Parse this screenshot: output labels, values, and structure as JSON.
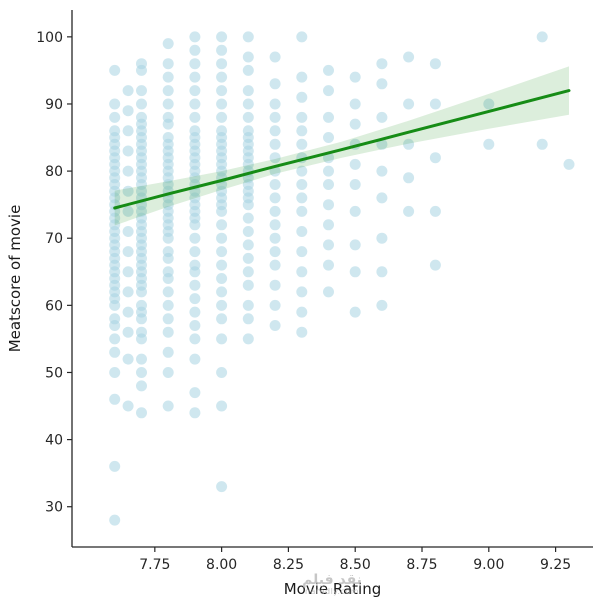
{
  "watermark": {
    "line1": "نقد فيلم",
    "line2": "naredly.com"
  },
  "chart_data": {
    "type": "scatter",
    "title": "",
    "xlabel": "Movie Rating",
    "ylabel": "Meatscore of movie",
    "xlim": [
      7.44,
      9.39
    ],
    "ylim": [
      24,
      104
    ],
    "xticks": [
      "7.75",
      "8.00",
      "8.25",
      "8.50",
      "8.75",
      "9.00",
      "9.25"
    ],
    "xtick_values": [
      7.75,
      8.0,
      8.25,
      8.5,
      8.75,
      9.0,
      9.25
    ],
    "yticks": [
      30,
      40,
      50,
      60,
      70,
      80,
      90,
      100
    ],
    "grid": false,
    "legend": "none",
    "point_color": "#a8d3e2",
    "point_opacity": 0.55,
    "point_radius": 5.5,
    "line_color": "#168c16",
    "line_width": 3,
    "band_color": "#168c16",
    "band_opacity": 0.15,
    "points_by_rating": [
      {
        "x": 7.6,
        "ys": [
          28,
          36,
          46,
          50,
          53,
          55,
          57,
          58,
          60,
          61,
          62,
          63,
          64,
          65,
          66,
          67,
          68,
          69,
          70,
          71,
          72,
          73,
          74,
          75,
          76,
          77,
          78,
          79,
          80,
          81,
          82,
          83,
          84,
          85,
          86,
          88,
          90,
          95
        ]
      },
      {
        "x": 7.65,
        "ys": [
          45,
          52,
          56,
          59,
          62,
          65,
          68,
          71,
          74,
          77,
          80,
          83,
          86,
          89,
          92
        ]
      },
      {
        "x": 7.7,
        "ys": [
          44,
          48,
          50,
          52,
          55,
          56,
          58,
          59,
          60,
          62,
          63,
          64,
          65,
          66,
          67,
          68,
          69,
          70,
          71,
          72,
          73,
          74,
          75,
          76,
          77,
          78,
          79,
          80,
          81,
          82,
          83,
          84,
          85,
          86,
          87,
          88,
          90,
          92,
          95,
          96
        ]
      },
      {
        "x": 7.8,
        "ys": [
          45,
          50,
          53,
          56,
          58,
          60,
          62,
          64,
          65,
          67,
          68,
          70,
          71,
          72,
          73,
          74,
          75,
          76,
          77,
          78,
          79,
          80,
          81,
          82,
          83,
          84,
          85,
          87,
          88,
          90,
          92,
          94,
          96,
          99
        ]
      },
      {
        "x": 7.9,
        "ys": [
          44,
          47,
          52,
          55,
          57,
          59,
          61,
          63,
          65,
          66,
          68,
          70,
          72,
          73,
          74,
          75,
          76,
          77,
          78,
          79,
          80,
          81,
          82,
          83,
          84,
          85,
          86,
          88,
          90,
          92,
          94,
          96,
          98,
          100
        ]
      },
      {
        "x": 8.0,
        "ys": [
          33,
          45,
          50,
          55,
          58,
          60,
          62,
          64,
          66,
          68,
          70,
          72,
          74,
          75,
          76,
          77,
          78,
          79,
          80,
          81,
          82,
          83,
          84,
          85,
          86,
          88,
          90,
          92,
          94,
          96,
          98,
          100
        ]
      },
      {
        "x": 8.1,
        "ys": [
          55,
          58,
          60,
          63,
          65,
          67,
          69,
          71,
          73,
          75,
          76,
          77,
          78,
          79,
          80,
          81,
          82,
          83,
          84,
          85,
          86,
          88,
          90,
          92,
          95,
          97,
          100
        ]
      },
      {
        "x": 8.2,
        "ys": [
          57,
          60,
          63,
          66,
          68,
          70,
          72,
          74,
          76,
          78,
          80,
          82,
          84,
          86,
          88,
          90,
          93,
          97
        ]
      },
      {
        "x": 8.3,
        "ys": [
          56,
          59,
          62,
          65,
          68,
          71,
          74,
          76,
          78,
          80,
          82,
          84,
          86,
          88,
          91,
          94,
          100
        ]
      },
      {
        "x": 8.4,
        "ys": [
          62,
          66,
          69,
          72,
          75,
          78,
          80,
          82,
          85,
          88,
          92,
          95
        ]
      },
      {
        "x": 8.5,
        "ys": [
          59,
          65,
          69,
          74,
          78,
          81,
          84,
          87,
          90,
          94
        ]
      },
      {
        "x": 8.6,
        "ys": [
          60,
          65,
          70,
          76,
          80,
          84,
          88,
          93,
          96
        ]
      },
      {
        "x": 8.7,
        "ys": [
          74,
          79,
          84,
          90,
          97
        ]
      },
      {
        "x": 8.8,
        "ys": [
          66,
          74,
          82,
          90,
          96
        ]
      },
      {
        "x": 9.0,
        "ys": [
          84,
          90
        ]
      },
      {
        "x": 9.2,
        "ys": [
          84,
          100
        ]
      },
      {
        "x": 9.3,
        "ys": [
          81
        ]
      }
    ],
    "regression": {
      "x": [
        7.6,
        7.8,
        8.0,
        8.2,
        8.45,
        8.7,
        9.0,
        9.3
      ],
      "y": [
        74.5,
        76.6,
        78.6,
        80.7,
        83.2,
        85.8,
        88.9,
        92.0
      ],
      "upper": [
        77.1,
        78.5,
        80.0,
        81.8,
        84.4,
        87.5,
        91.5,
        95.6
      ],
      "lower": [
        71.9,
        74.7,
        77.2,
        79.6,
        82.0,
        84.1,
        86.3,
        88.4
      ]
    }
  }
}
